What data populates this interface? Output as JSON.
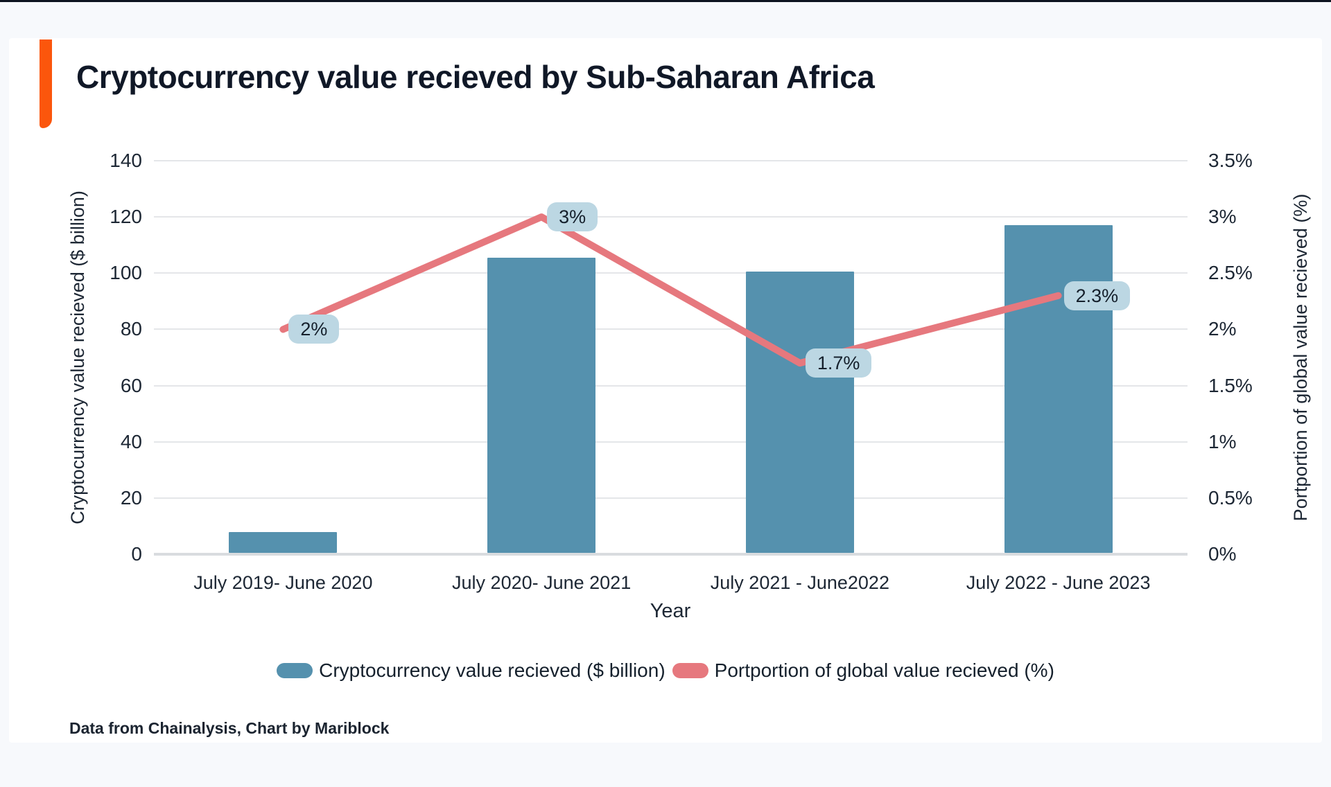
{
  "header": {
    "title": "Cryptocurrency value recieved by Sub-Saharan Africa",
    "accent_color": "#fb560c"
  },
  "footer": {
    "source_note": "Data from Chainalysis, Chart by Mariblock"
  },
  "legend": {
    "items": [
      {
        "label": "Cryptocurrency value recieved ($ billion)",
        "color": "#5591ae"
      },
      {
        "label": "Portportion of global value recieved (%)",
        "color": "#e6787e"
      }
    ]
  },
  "chart_data": {
    "type": "bar+line",
    "title": "Cryptocurrency value recieved by Sub-Saharan Africa",
    "categories": [
      "July 2019- June 2020",
      "July 2020- June 2021",
      "July 2021 - June2022",
      "July 2022 - June 2023"
    ],
    "xlabel": "Year",
    "ylabel_left": "Cryptocurrency value recieved ($ billion)",
    "ylabel_right": "Portportion of global value recieved (%)",
    "grid": true,
    "legend_position": "bottom",
    "axis_left": {
      "min": 0,
      "max": 140,
      "step": 20,
      "tick_values": [
        0,
        20,
        40,
        60,
        80,
        100,
        120,
        140
      ],
      "tick_labels": [
        "0",
        "20",
        "40",
        "60",
        "80",
        "100",
        "120",
        "140"
      ]
    },
    "axis_right": {
      "min": 0,
      "max": 3.5,
      "step": 0.5,
      "tick_values": [
        0,
        0.5,
        1,
        1.5,
        2,
        2.5,
        3,
        3.5
      ],
      "tick_labels": [
        "0%",
        "0.5%",
        "1%",
        "1.5%",
        "2%",
        "2.5%",
        "3%",
        "3.5%"
      ]
    },
    "series": [
      {
        "name": "Cryptocurrency value recieved ($ billion)",
        "type": "bar",
        "axis": "left",
        "color": "#5591ae",
        "values": [
          8,
          105.6,
          100.6,
          117.1
        ]
      },
      {
        "name": "Portportion of global value recieved (%)",
        "type": "line",
        "axis": "right",
        "color": "#e6787e",
        "values": [
          2,
          3,
          1.7,
          2.3
        ],
        "point_labels": [
          "2%",
          "3%",
          "1.7%",
          "2.3%"
        ]
      }
    ]
  },
  "colors": {
    "bar": "#5591ae",
    "line": "#e6787e",
    "chip_bg": "#bcd7e3",
    "page_bg": "#f7f9fc",
    "card_bg": "#ffffff"
  }
}
